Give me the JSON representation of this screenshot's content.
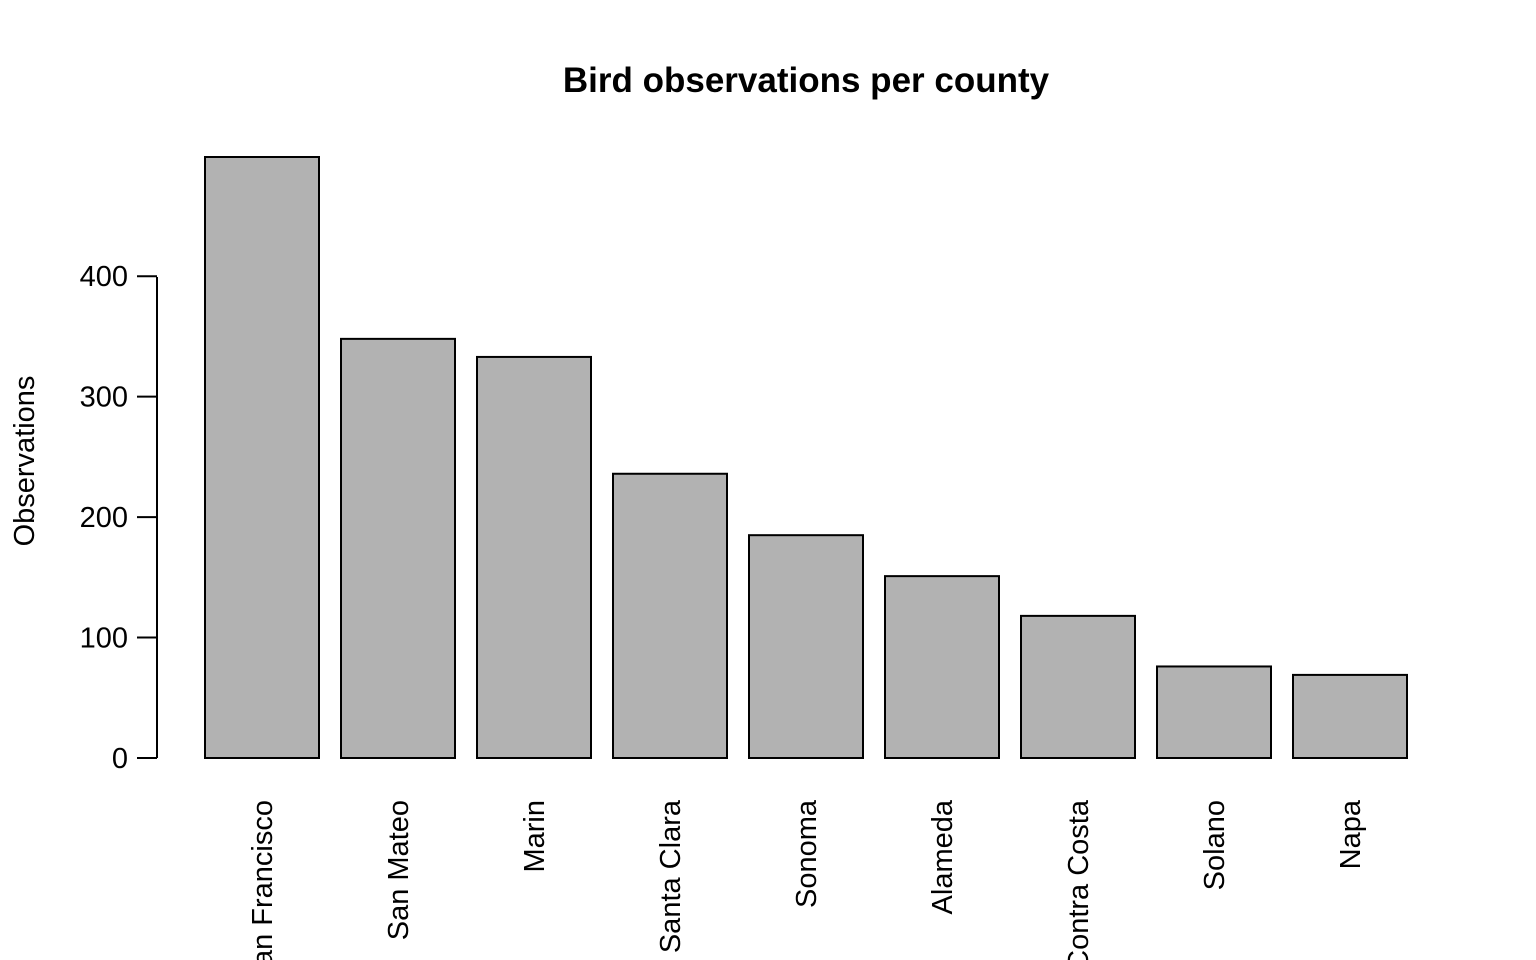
{
  "chart_data": {
    "type": "bar",
    "title": "Bird observations per county",
    "xlabel": "",
    "ylabel": "Observations",
    "categories": [
      "San Francisco",
      "San Mateo",
      "Marin",
      "Santa Clara",
      "Sonoma",
      "Alameda",
      "Contra Costa",
      "Solano",
      "Napa"
    ],
    "values": [
      499,
      348,
      333,
      236,
      185,
      151,
      118,
      76,
      69
    ],
    "yticks": [
      0,
      100,
      200,
      300,
      400
    ],
    "ylim": [
      0,
      499
    ],
    "bar_color": "#b2b2b2",
    "bar_outline": "#000000",
    "grid": false,
    "legend": "none"
  }
}
